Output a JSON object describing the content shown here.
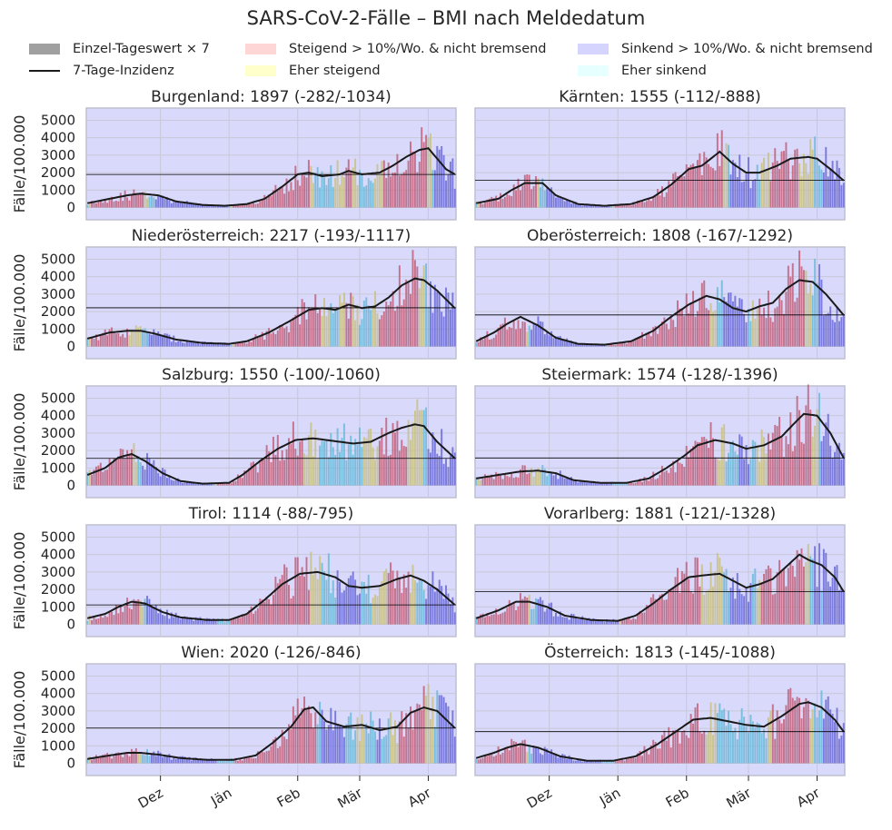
{
  "title": "SARS-CoV-2-Fälle – BMI nach Meldedatum",
  "legend": [
    {
      "label": "Einzel-Tageswert × 7",
      "kind": "swatch",
      "color": "#a0a0a0"
    },
    {
      "label": "7-Tage-Inzidenz",
      "kind": "line",
      "color": "#1a1a1a"
    },
    {
      "label": "Steigend > 10%/Wo. & nicht bremsend",
      "kind": "swatch",
      "color": "#ffd6d6"
    },
    {
      "label": "Eher steigend",
      "kind": "swatch",
      "color": "#ffffcc"
    },
    {
      "label": "Sinkend > 10%/Wo. & nicht bremsend",
      "kind": "swatch",
      "color": "#d4d4ff"
    },
    {
      "label": "Eher sinkend",
      "kind": "swatch",
      "color": "#e6ffff"
    }
  ],
  "colors": {
    "panel_bg": "#d9d9fb",
    "grid": "#c8c8d8",
    "bar_rising": "#c0607a",
    "bar_rather_rising": "#c8c080",
    "bar_falling": "#6a6ad8",
    "bar_rather_falling": "#6ab8d8",
    "line": "#1a1a1a"
  },
  "chart_data": {
    "type": "bar",
    "ylabel": "Fälle/100.000",
    "yticks": [
      0,
      1000,
      2000,
      3000,
      4000,
      5000
    ],
    "ylim": [
      -700,
      5700
    ],
    "xtick_labels": [
      "Dez",
      "Jän",
      "Feb",
      "Mär",
      "Apr"
    ],
    "panels": [
      {
        "title": "Burgenland: 1897 (-282/-1034)",
        "current": 1897,
        "incidence": [
          [
            0,
            250
          ],
          [
            10,
            500
          ],
          [
            18,
            700
          ],
          [
            24,
            800
          ],
          [
            32,
            700
          ],
          [
            40,
            350
          ],
          [
            52,
            150
          ],
          [
            62,
            100
          ],
          [
            72,
            200
          ],
          [
            80,
            500
          ],
          [
            88,
            1200
          ],
          [
            95,
            1900
          ],
          [
            100,
            2000
          ],
          [
            106,
            1800
          ],
          [
            114,
            1900
          ],
          [
            118,
            2100
          ],
          [
            124,
            1900
          ],
          [
            132,
            2000
          ],
          [
            138,
            2400
          ],
          [
            144,
            2900
          ],
          [
            150,
            3300
          ],
          [
            154,
            3400
          ],
          [
            156,
            3100
          ],
          [
            162,
            2200
          ],
          [
            166,
            1900
          ]
        ]
      },
      {
        "title": "Kärnten: 1555 (-112/-888)",
        "current": 1555,
        "incidence": [
          [
            0,
            250
          ],
          [
            10,
            500
          ],
          [
            16,
            1000
          ],
          [
            22,
            1400
          ],
          [
            30,
            1400
          ],
          [
            36,
            700
          ],
          [
            46,
            200
          ],
          [
            58,
            100
          ],
          [
            70,
            200
          ],
          [
            80,
            600
          ],
          [
            88,
            1300
          ],
          [
            96,
            2200
          ],
          [
            102,
            2400
          ],
          [
            110,
            3200
          ],
          [
            116,
            2500
          ],
          [
            122,
            2000
          ],
          [
            128,
            2000
          ],
          [
            136,
            2400
          ],
          [
            142,
            2800
          ],
          [
            150,
            2900
          ],
          [
            154,
            2800
          ],
          [
            160,
            2200
          ],
          [
            166,
            1550
          ]
        ]
      },
      {
        "title": "Niederösterreich: 2217 (-193/-1117)",
        "current": 2217,
        "incidence": [
          [
            0,
            450
          ],
          [
            10,
            800
          ],
          [
            18,
            900
          ],
          [
            24,
            900
          ],
          [
            30,
            750
          ],
          [
            40,
            400
          ],
          [
            52,
            200
          ],
          [
            64,
            150
          ],
          [
            72,
            300
          ],
          [
            82,
            800
          ],
          [
            92,
            1500
          ],
          [
            100,
            2100
          ],
          [
            106,
            2200
          ],
          [
            112,
            2100
          ],
          [
            118,
            2400
          ],
          [
            124,
            2200
          ],
          [
            130,
            2300
          ],
          [
            136,
            2800
          ],
          [
            142,
            3500
          ],
          [
            148,
            3900
          ],
          [
            152,
            3800
          ],
          [
            158,
            3200
          ],
          [
            166,
            2200
          ]
        ]
      },
      {
        "title": "Oberösterreich: 1808 (-167/-1292)",
        "current": 1808,
        "incidence": [
          [
            0,
            300
          ],
          [
            8,
            800
          ],
          [
            14,
            1300
          ],
          [
            20,
            1700
          ],
          [
            28,
            1200
          ],
          [
            36,
            500
          ],
          [
            46,
            150
          ],
          [
            58,
            100
          ],
          [
            70,
            300
          ],
          [
            80,
            900
          ],
          [
            88,
            1700
          ],
          [
            96,
            2400
          ],
          [
            104,
            2900
          ],
          [
            110,
            2700
          ],
          [
            116,
            2200
          ],
          [
            122,
            2000
          ],
          [
            128,
            2300
          ],
          [
            134,
            2500
          ],
          [
            140,
            3300
          ],
          [
            146,
            3800
          ],
          [
            152,
            3700
          ],
          [
            158,
            3000
          ],
          [
            166,
            1800
          ]
        ]
      },
      {
        "title": "Salzburg: 1550 (-100/-1060)",
        "current": 1550,
        "incidence": [
          [
            0,
            600
          ],
          [
            8,
            1000
          ],
          [
            14,
            1600
          ],
          [
            20,
            1800
          ],
          [
            26,
            1400
          ],
          [
            34,
            700
          ],
          [
            42,
            250
          ],
          [
            52,
            100
          ],
          [
            64,
            150
          ],
          [
            70,
            600
          ],
          [
            78,
            1400
          ],
          [
            86,
            2100
          ],
          [
            94,
            2600
          ],
          [
            102,
            2700
          ],
          [
            108,
            2600
          ],
          [
            114,
            2500
          ],
          [
            120,
            2400
          ],
          [
            128,
            2500
          ],
          [
            136,
            3000
          ],
          [
            142,
            3300
          ],
          [
            148,
            3500
          ],
          [
            152,
            3400
          ],
          [
            158,
            2500
          ],
          [
            166,
            1550
          ]
        ]
      },
      {
        "title": "Steiermark: 1574 (-128/-1396)",
        "current": 1574,
        "incidence": [
          [
            0,
            400
          ],
          [
            10,
            600
          ],
          [
            20,
            800
          ],
          [
            28,
            850
          ],
          [
            36,
            700
          ],
          [
            44,
            300
          ],
          [
            56,
            150
          ],
          [
            68,
            150
          ],
          [
            78,
            400
          ],
          [
            86,
            1000
          ],
          [
            94,
            1700
          ],
          [
            100,
            2300
          ],
          [
            108,
            2600
          ],
          [
            116,
            2400
          ],
          [
            122,
            2100
          ],
          [
            130,
            2300
          ],
          [
            138,
            2800
          ],
          [
            144,
            3600
          ],
          [
            148,
            4100
          ],
          [
            154,
            4000
          ],
          [
            160,
            3000
          ],
          [
            166,
            1574
          ]
        ]
      },
      {
        "title": "Tirol: 1114 (-88/-795)",
        "current": 1114,
        "incidence": [
          [
            0,
            350
          ],
          [
            8,
            600
          ],
          [
            14,
            1000
          ],
          [
            20,
            1300
          ],
          [
            26,
            1200
          ],
          [
            34,
            700
          ],
          [
            42,
            400
          ],
          [
            54,
            250
          ],
          [
            64,
            250
          ],
          [
            72,
            600
          ],
          [
            80,
            1400
          ],
          [
            88,
            2300
          ],
          [
            96,
            2900
          ],
          [
            104,
            3000
          ],
          [
            112,
            2700
          ],
          [
            118,
            2200
          ],
          [
            124,
            2100
          ],
          [
            132,
            2200
          ],
          [
            140,
            2600
          ],
          [
            146,
            2800
          ],
          [
            152,
            2500
          ],
          [
            158,
            2000
          ],
          [
            166,
            1114
          ]
        ]
      },
      {
        "title": "Vorarlberg: 1881 (-121/-1328)",
        "current": 1881,
        "incidence": [
          [
            0,
            350
          ],
          [
            10,
            800
          ],
          [
            18,
            1300
          ],
          [
            24,
            1300
          ],
          [
            32,
            1000
          ],
          [
            40,
            500
          ],
          [
            52,
            250
          ],
          [
            64,
            200
          ],
          [
            72,
            500
          ],
          [
            80,
            1200
          ],
          [
            88,
            2000
          ],
          [
            96,
            2700
          ],
          [
            102,
            2800
          ],
          [
            110,
            2900
          ],
          [
            116,
            2500
          ],
          [
            122,
            2100
          ],
          [
            128,
            2300
          ],
          [
            134,
            2600
          ],
          [
            140,
            3300
          ],
          [
            146,
            4000
          ],
          [
            150,
            3700
          ],
          [
            156,
            3400
          ],
          [
            162,
            2700
          ],
          [
            166,
            1881
          ]
        ]
      },
      {
        "title": "Wien: 2020 (-126/-846)",
        "current": 2020,
        "incidence": [
          [
            0,
            250
          ],
          [
            10,
            450
          ],
          [
            18,
            600
          ],
          [
            24,
            600
          ],
          [
            32,
            500
          ],
          [
            42,
            300
          ],
          [
            54,
            200
          ],
          [
            66,
            200
          ],
          [
            76,
            450
          ],
          [
            84,
            1200
          ],
          [
            92,
            2100
          ],
          [
            98,
            3100
          ],
          [
            102,
            3200
          ],
          [
            108,
            2400
          ],
          [
            116,
            2100
          ],
          [
            124,
            2200
          ],
          [
            132,
            1900
          ],
          [
            140,
            2100
          ],
          [
            146,
            2900
          ],
          [
            152,
            3200
          ],
          [
            158,
            3000
          ],
          [
            166,
            2020
          ]
        ]
      },
      {
        "title": "Österreich: 1813 (-145/-1088)",
        "current": 1813,
        "incidence": [
          [
            0,
            300
          ],
          [
            8,
            600
          ],
          [
            14,
            900
          ],
          [
            20,
            1100
          ],
          [
            28,
            900
          ],
          [
            38,
            400
          ],
          [
            50,
            150
          ],
          [
            62,
            150
          ],
          [
            72,
            400
          ],
          [
            82,
            1100
          ],
          [
            90,
            1800
          ],
          [
            98,
            2500
          ],
          [
            106,
            2600
          ],
          [
            114,
            2400
          ],
          [
            122,
            2200
          ],
          [
            130,
            2100
          ],
          [
            138,
            2700
          ],
          [
            146,
            3400
          ],
          [
            150,
            3500
          ],
          [
            156,
            3200
          ],
          [
            162,
            2500
          ],
          [
            166,
            1813
          ]
        ]
      }
    ]
  }
}
